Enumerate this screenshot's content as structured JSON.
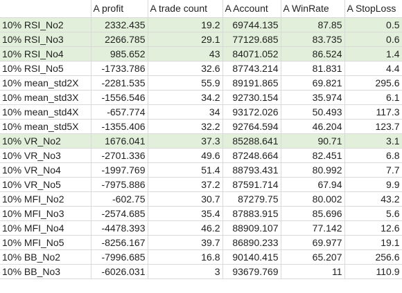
{
  "headers": [
    "",
    "A profit",
    "A trade count",
    "A Account",
    "A WinRate",
    "A StopLoss"
  ],
  "rows": [
    {
      "name": "10% RSI_No2",
      "profit": "2332.435",
      "trade_count": "19.2",
      "account": "69744.135",
      "win_rate": "87.85",
      "stop_loss": "0.5",
      "highlight": true
    },
    {
      "name": "10% RSI_No3",
      "profit": "2266.785",
      "trade_count": "29.1",
      "account": "77129.685",
      "win_rate": "83.735",
      "stop_loss": "0.6",
      "highlight": true
    },
    {
      "name": "10% RSI_No4",
      "profit": "985.652",
      "trade_count": "43",
      "account": "84071.052",
      "win_rate": "86.524",
      "stop_loss": "1.4",
      "highlight": true
    },
    {
      "name": "10% RSI_No5",
      "profit": "-1733.786",
      "trade_count": "32.6",
      "account": "87743.214",
      "win_rate": "81.831",
      "stop_loss": "4.4",
      "highlight": false
    },
    {
      "name": "10% mean_std2X",
      "profit": "-2281.535",
      "trade_count": "55.9",
      "account": "89191.865",
      "win_rate": "69.821",
      "stop_loss": "295.6",
      "highlight": false
    },
    {
      "name": "10% mean_std3X",
      "profit": "-1556.546",
      "trade_count": "34.2",
      "account": "92730.154",
      "win_rate": "35.974",
      "stop_loss": "6.1",
      "highlight": false
    },
    {
      "name": "10% mean_std4X",
      "profit": "-657.774",
      "trade_count": "34",
      "account": "93172.026",
      "win_rate": "50.493",
      "stop_loss": "117.3",
      "highlight": false
    },
    {
      "name": "10% mean_std5X",
      "profit": "-1355.406",
      "trade_count": "32.2",
      "account": "92764.594",
      "win_rate": "46.204",
      "stop_loss": "123.7",
      "highlight": false
    },
    {
      "name": "10% VR_No2",
      "profit": "1676.041",
      "trade_count": "37.3",
      "account": "85288.641",
      "win_rate": "90.71",
      "stop_loss": "3.1",
      "highlight": true
    },
    {
      "name": "10% VR_No3",
      "profit": "-2701.336",
      "trade_count": "49.6",
      "account": "87248.664",
      "win_rate": "82.451",
      "stop_loss": "6.8",
      "highlight": false
    },
    {
      "name": "10% VR_No4",
      "profit": "-1997.769",
      "trade_count": "51.4",
      "account": "88793.431",
      "win_rate": "80.992",
      "stop_loss": "7.7",
      "highlight": false
    },
    {
      "name": "10% VR_No5",
      "profit": "-7975.886",
      "trade_count": "37.2",
      "account": "87591.714",
      "win_rate": "67.94",
      "stop_loss": "9.9",
      "highlight": false
    },
    {
      "name": "10% MFI_No2",
      "profit": "-602.75",
      "trade_count": "30.7",
      "account": "87279.75",
      "win_rate": "80.002",
      "stop_loss": "43.2",
      "highlight": false
    },
    {
      "name": "10% MFI_No3",
      "profit": "-2574.685",
      "trade_count": "35.4",
      "account": "87883.915",
      "win_rate": "85.696",
      "stop_loss": "5.6",
      "highlight": false
    },
    {
      "name": "10% MFI_No4",
      "profit": "-4478.393",
      "trade_count": "46.2",
      "account": "88909.107",
      "win_rate": "77.142",
      "stop_loss": "12.6",
      "highlight": false
    },
    {
      "name": "10% MFI_No5",
      "profit": "-8256.167",
      "trade_count": "39.7",
      "account": "86890.233",
      "win_rate": "69.977",
      "stop_loss": "19.1",
      "highlight": false
    },
    {
      "name": "10% BB_No2",
      "profit": "-7996.685",
      "trade_count": "16.8",
      "account": "90140.415",
      "win_rate": "65.207",
      "stop_loss": "256.6",
      "highlight": false
    },
    {
      "name": "10% BB_No3",
      "profit": "-6026.031",
      "trade_count": "3",
      "account": "93679.769",
      "win_rate": "11",
      "stop_loss": "110.9",
      "highlight": false
    }
  ]
}
